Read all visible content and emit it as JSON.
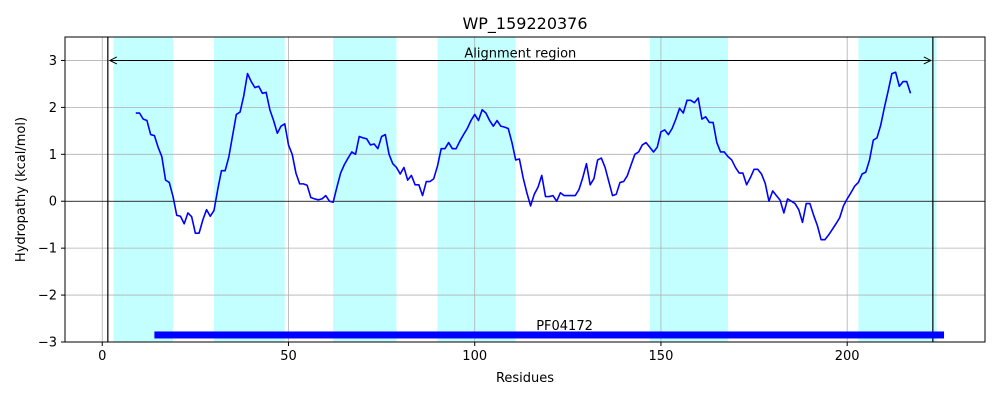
{
  "chart_data": {
    "type": "line",
    "title": "WP_159220376",
    "xlabel": "Residues",
    "ylabel": "Hydropathy (kcal/mol)",
    "xlim": [
      -10,
      237
    ],
    "ylim": [
      -3,
      3.5
    ],
    "xticks": [
      0,
      50,
      100,
      150,
      200
    ],
    "yticks": [
      -3,
      -2,
      -1,
      0,
      1,
      2,
      3
    ],
    "ytick_labels": [
      "−3",
      "−2",
      "−1",
      "0",
      "1",
      "2",
      "3"
    ],
    "grid": true,
    "colors": {
      "line": "#0000ff",
      "band": "#c4ffff",
      "domain_bar": "#0000ff",
      "grid": "#b0b0b0",
      "axis": "#000000"
    },
    "shaded_regions": [
      [
        3,
        19
      ],
      [
        30,
        49
      ],
      [
        62,
        79
      ],
      [
        90,
        111
      ],
      [
        147,
        168
      ],
      [
        203,
        224
      ]
    ],
    "vertical_lines": [
      1.5,
      223
    ],
    "alignment_region": {
      "label": "Alignment region",
      "x_start": 1.5,
      "x_end": 223,
      "y": 3
    },
    "domain": {
      "label": "PF04172",
      "x_start": 14,
      "x_end": 226,
      "y": -2.85
    },
    "horizontal_line_y": 0,
    "series": [
      {
        "x": [
          9,
          10,
          11,
          12,
          13,
          14,
          15,
          16,
          17,
          18,
          19,
          20,
          21,
          22,
          23,
          24,
          25,
          26,
          27,
          28,
          29,
          30,
          31,
          32,
          33,
          34,
          35,
          36,
          37,
          38,
          39,
          40,
          41,
          42,
          43,
          44,
          45,
          46,
          47,
          48,
          49,
          50,
          51,
          52,
          53,
          54,
          55,
          56,
          57,
          58,
          59,
          60,
          61,
          62,
          63,
          64,
          65,
          66,
          67,
          68,
          69,
          70,
          71,
          72,
          73,
          74,
          75,
          76,
          77,
          78,
          79,
          80,
          81,
          82,
          83,
          84,
          85,
          86,
          87,
          88,
          89,
          90,
          91,
          92,
          93,
          94,
          95,
          96,
          97,
          98,
          99,
          100,
          101,
          102,
          103,
          104,
          105,
          106,
          107,
          108,
          109,
          110,
          111,
          112,
          113,
          114,
          115,
          116,
          117,
          118,
          119,
          120,
          121,
          122,
          123,
          124,
          125,
          126,
          127,
          128,
          129,
          130,
          131,
          132,
          133,
          134,
          135,
          136,
          137,
          138,
          139,
          140,
          141,
          142,
          143,
          144,
          145,
          146,
          147,
          148,
          149,
          150,
          151,
          152,
          153,
          154,
          155,
          156,
          157,
          158,
          159,
          160,
          161,
          162,
          163,
          164,
          165,
          166,
          167,
          168,
          169,
          170,
          171,
          172,
          173,
          174,
          175,
          176,
          177,
          178,
          179,
          180,
          181,
          182,
          183,
          184,
          185,
          186,
          187,
          188,
          189,
          190,
          191,
          192,
          193,
          194,
          195,
          196,
          197,
          198,
          199,
          200,
          201,
          202,
          203,
          204,
          205,
          206,
          207,
          208,
          209,
          210,
          211,
          212,
          213,
          214,
          215,
          216,
          217
        ],
        "y": [
          1.88,
          1.88,
          1.75,
          1.72,
          1.42,
          1.4,
          1.15,
          0.95,
          0.45,
          0.4,
          0.1,
          -0.3,
          -0.32,
          -0.48,
          -0.25,
          -0.33,
          -0.68,
          -0.68,
          -0.4,
          -0.18,
          -0.32,
          -0.2,
          0.25,
          0.65,
          0.65,
          0.95,
          1.4,
          1.85,
          1.9,
          2.25,
          2.72,
          2.55,
          2.42,
          2.45,
          2.3,
          2.32,
          1.95,
          1.72,
          1.45,
          1.6,
          1.65,
          1.2,
          1.0,
          0.6,
          0.37,
          0.37,
          0.34,
          0.08,
          0.05,
          0.03,
          0.05,
          0.12,
          0.0,
          -0.02,
          0.3,
          0.6,
          0.78,
          0.92,
          1.05,
          1.0,
          1.38,
          1.35,
          1.33,
          1.2,
          1.22,
          1.12,
          1.38,
          1.42,
          1.0,
          0.8,
          0.72,
          0.58,
          0.72,
          0.45,
          0.55,
          0.35,
          0.35,
          0.12,
          0.42,
          0.42,
          0.48,
          0.75,
          1.12,
          1.12,
          1.25,
          1.12,
          1.12,
          1.28,
          1.42,
          1.55,
          1.72,
          1.85,
          1.72,
          1.95,
          1.88,
          1.72,
          1.6,
          1.72,
          1.6,
          1.58,
          1.55,
          1.25,
          0.88,
          0.9,
          0.5,
          0.18,
          -0.1,
          0.15,
          0.3,
          0.55,
          0.1,
          0.1,
          0.12,
          0.0,
          0.18,
          0.12,
          0.12,
          0.12,
          0.12,
          0.25,
          0.5,
          0.8,
          0.35,
          0.48,
          0.88,
          0.92,
          0.72,
          0.42,
          0.12,
          0.15,
          0.4,
          0.42,
          0.55,
          0.78,
          1.0,
          1.05,
          1.2,
          1.25,
          1.15,
          1.05,
          1.15,
          1.48,
          1.52,
          1.42,
          1.55,
          1.75,
          1.98,
          1.88,
          2.15,
          2.15,
          2.1,
          2.2,
          1.75,
          1.8,
          1.68,
          1.68,
          1.25,
          1.05,
          1.05,
          0.95,
          0.88,
          0.72,
          0.6,
          0.6,
          0.35,
          0.5,
          0.68,
          0.68,
          0.58,
          0.38,
          0.0,
          0.22,
          0.12,
          0.02,
          -0.25,
          0.05,
          0.0,
          -0.05,
          -0.18,
          -0.45,
          -0.05,
          -0.05,
          -0.3,
          -0.52,
          -0.82,
          -0.82,
          -0.72,
          -0.6,
          -0.48,
          -0.35,
          -0.1,
          0.05,
          0.18,
          0.32,
          0.4,
          0.58,
          0.62,
          0.88,
          1.3,
          1.35,
          1.62,
          2.0,
          2.35,
          2.72,
          2.75,
          2.45,
          2.55,
          2.55,
          2.3
        ]
      }
    ]
  }
}
